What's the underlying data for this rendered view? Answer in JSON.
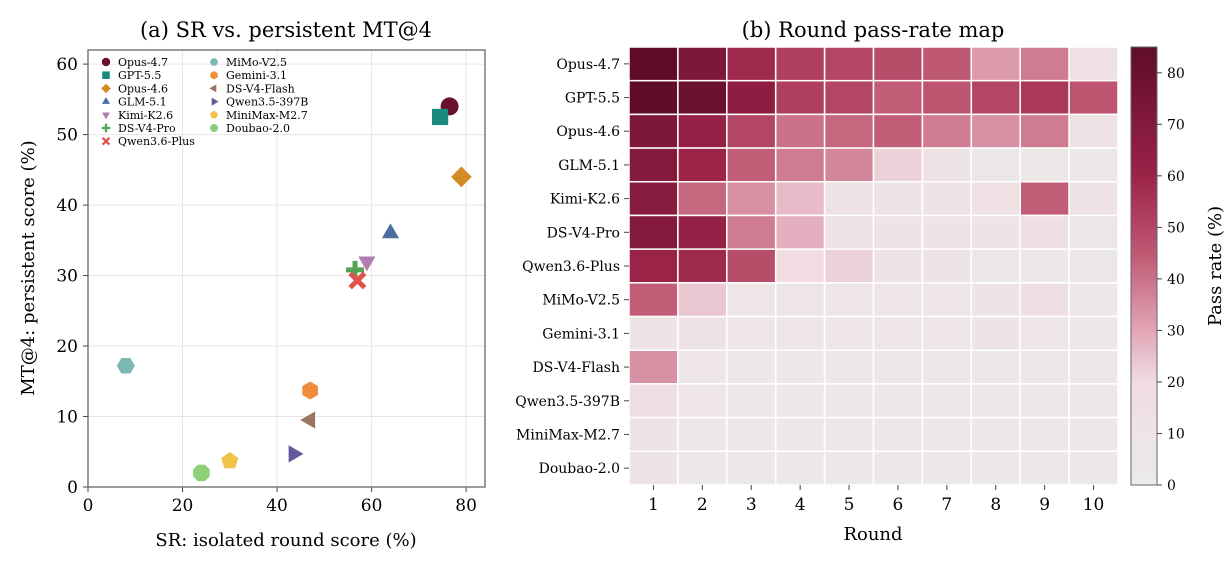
{
  "chart_data": [
    {
      "type": "scatter",
      "title": "(a) SR vs. persistent MT@4",
      "xlabel": "SR: isolated round score (%)",
      "ylabel": "MT@4: persistent score (%)",
      "xlim": [
        0,
        84
      ],
      "ylim": [
        0,
        62
      ],
      "xticks": [
        0,
        20,
        40,
        60,
        80
      ],
      "yticks": [
        0,
        10,
        20,
        30,
        40,
        50,
        60
      ],
      "grid": true,
      "legend_position": "top-left",
      "series": [
        {
          "name": "Opus-4.7",
          "x": 76.5,
          "y": 54.0,
          "color": "#6b0f2c",
          "marker": "circle"
        },
        {
          "name": "GPT-5.5",
          "x": 74.5,
          "y": 52.5,
          "color": "#1a8a7f",
          "marker": "square"
        },
        {
          "name": "Opus-4.6",
          "x": 79.0,
          "y": 44.0,
          "color": "#d48b24",
          "marker": "diamond"
        },
        {
          "name": "GLM-5.1",
          "x": 64.0,
          "y": 36.0,
          "color": "#4a6e9f",
          "marker": "triangle-up"
        },
        {
          "name": "Kimi-K2.6",
          "x": 59.0,
          "y": 32.0,
          "color": "#b07fb0",
          "marker": "triangle-down"
        },
        {
          "name": "DS-V4-Pro",
          "x": 56.5,
          "y": 30.8,
          "color": "#55a255",
          "marker": "plus"
        },
        {
          "name": "Qwen3.6-Plus",
          "x": 57.0,
          "y": 29.3,
          "color": "#e0504c",
          "marker": "x"
        },
        {
          "name": "MiMo-V2.5",
          "x": 8.0,
          "y": 17.2,
          "color": "#7ab8b4",
          "marker": "hexagon"
        },
        {
          "name": "Gemini-3.1",
          "x": 47.0,
          "y": 13.7,
          "color": "#ef8d3a",
          "marker": "hexagon-alt"
        },
        {
          "name": "DS-V4-Flash",
          "x": 47.0,
          "y": 9.5,
          "color": "#9c7460",
          "marker": "triangle-left"
        },
        {
          "name": "Qwen3.5-397B",
          "x": 43.5,
          "y": 4.7,
          "color": "#65599b",
          "marker": "triangle-right"
        },
        {
          "name": "MiniMax-M2.7",
          "x": 30.0,
          "y": 3.7,
          "color": "#f0c247",
          "marker": "pentagon"
        },
        {
          "name": "Doubao-2.0",
          "x": 24.0,
          "y": 2.0,
          "color": "#8fd07a",
          "marker": "octagon"
        }
      ]
    },
    {
      "type": "heatmap",
      "title": "(b) Round pass-rate map",
      "xlabel": "Round",
      "colorbar_label": "Pass rate (%)",
      "colorbar_range": [
        0,
        85
      ],
      "colorbar_ticks": [
        0,
        10,
        20,
        30,
        40,
        50,
        60,
        70,
        80
      ],
      "columns": [
        "1",
        "2",
        "3",
        "4",
        "5",
        "6",
        "7",
        "8",
        "9",
        "10"
      ],
      "rows": [
        "Opus-4.7",
        "GPT-5.5",
        "Opus-4.6",
        "GLM-5.1",
        "Kimi-K2.6",
        "DS-V4-Pro",
        "Qwen3.6-Plus",
        "MiMo-V2.5",
        "Gemini-3.1",
        "DS-V4-Flash",
        "Qwen3.5-397B",
        "MiniMax-M2.7",
        "Doubao-2.0"
      ],
      "values": [
        [
          85,
          72,
          58,
          52,
          50,
          48,
          45,
          32,
          38,
          14
        ],
        [
          85,
          80,
          66,
          52,
          50,
          44,
          46,
          50,
          54,
          46
        ],
        [
          72,
          62,
          50,
          40,
          42,
          44,
          38,
          34,
          38,
          12
        ],
        [
          70,
          60,
          44,
          38,
          36,
          22,
          10,
          5,
          4,
          4
        ],
        [
          68,
          42,
          34,
          26,
          12,
          10,
          10,
          14,
          44,
          12
        ],
        [
          70,
          62,
          38,
          28,
          12,
          10,
          10,
          10,
          16,
          5
        ],
        [
          60,
          58,
          48,
          20,
          22,
          10,
          10,
          5,
          4,
          5
        ],
        [
          44,
          24,
          8,
          8,
          8,
          8,
          8,
          10,
          16,
          4
        ],
        [
          10,
          10,
          8,
          8,
          8,
          8,
          8,
          10,
          8,
          4
        ],
        [
          34,
          8,
          4,
          4,
          4,
          4,
          4,
          4,
          4,
          4
        ],
        [
          16,
          8,
          4,
          4,
          4,
          4,
          4,
          4,
          4,
          4
        ],
        [
          10,
          4,
          4,
          4,
          4,
          4,
          4,
          4,
          4,
          4
        ],
        [
          10,
          4,
          4,
          4,
          4,
          4,
          4,
          4,
          4,
          4
        ]
      ]
    }
  ]
}
